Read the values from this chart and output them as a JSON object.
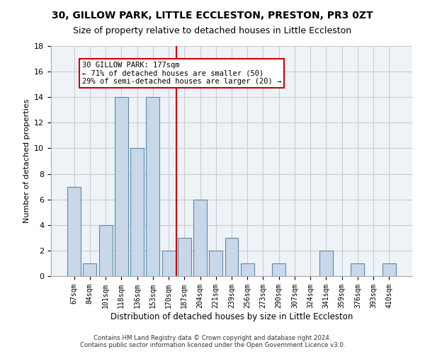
{
  "title": "30, GILLOW PARK, LITTLE ECCLESTON, PRESTON, PR3 0ZT",
  "subtitle": "Size of property relative to detached houses in Little Eccleston",
  "xlabel": "Distribution of detached houses by size in Little Eccleston",
  "ylabel": "Number of detached properties",
  "categories": [
    "67sqm",
    "84sqm",
    "101sqm",
    "118sqm",
    "136sqm",
    "153sqm",
    "170sqm",
    "187sqm",
    "204sqm",
    "221sqm",
    "239sqm",
    "256sqm",
    "273sqm",
    "290sqm",
    "307sqm",
    "324sqm",
    "341sqm",
    "359sqm",
    "376sqm",
    "393sqm",
    "410sqm"
  ],
  "values": [
    7,
    1,
    4,
    14,
    10,
    14,
    2,
    3,
    6,
    2,
    3,
    1,
    0,
    1,
    0,
    0,
    2,
    0,
    1,
    0,
    1
  ],
  "bar_color": "#c8d8e8",
  "bar_edge_color": "#5a8ab0",
  "reference_line_index": 6,
  "reference_line_color": "#cc0000",
  "annotation_text": "30 GILLOW PARK: 177sqm\n← 71% of detached houses are smaller (50)\n29% of semi-detached houses are larger (20) →",
  "annotation_box_color": "#ffffff",
  "annotation_box_edge_color": "#cc0000",
  "ylim": [
    0,
    18
  ],
  "yticks": [
    0,
    2,
    4,
    6,
    8,
    10,
    12,
    14,
    16,
    18
  ],
  "grid_color": "#cccccc",
  "background_color": "#eef3f8",
  "footer_line1": "Contains HM Land Registry data © Crown copyright and database right 2024.",
  "footer_line2": "Contains public sector information licensed under the Open Government Licence v3.0.",
  "title_fontsize": 10,
  "subtitle_fontsize": 9
}
